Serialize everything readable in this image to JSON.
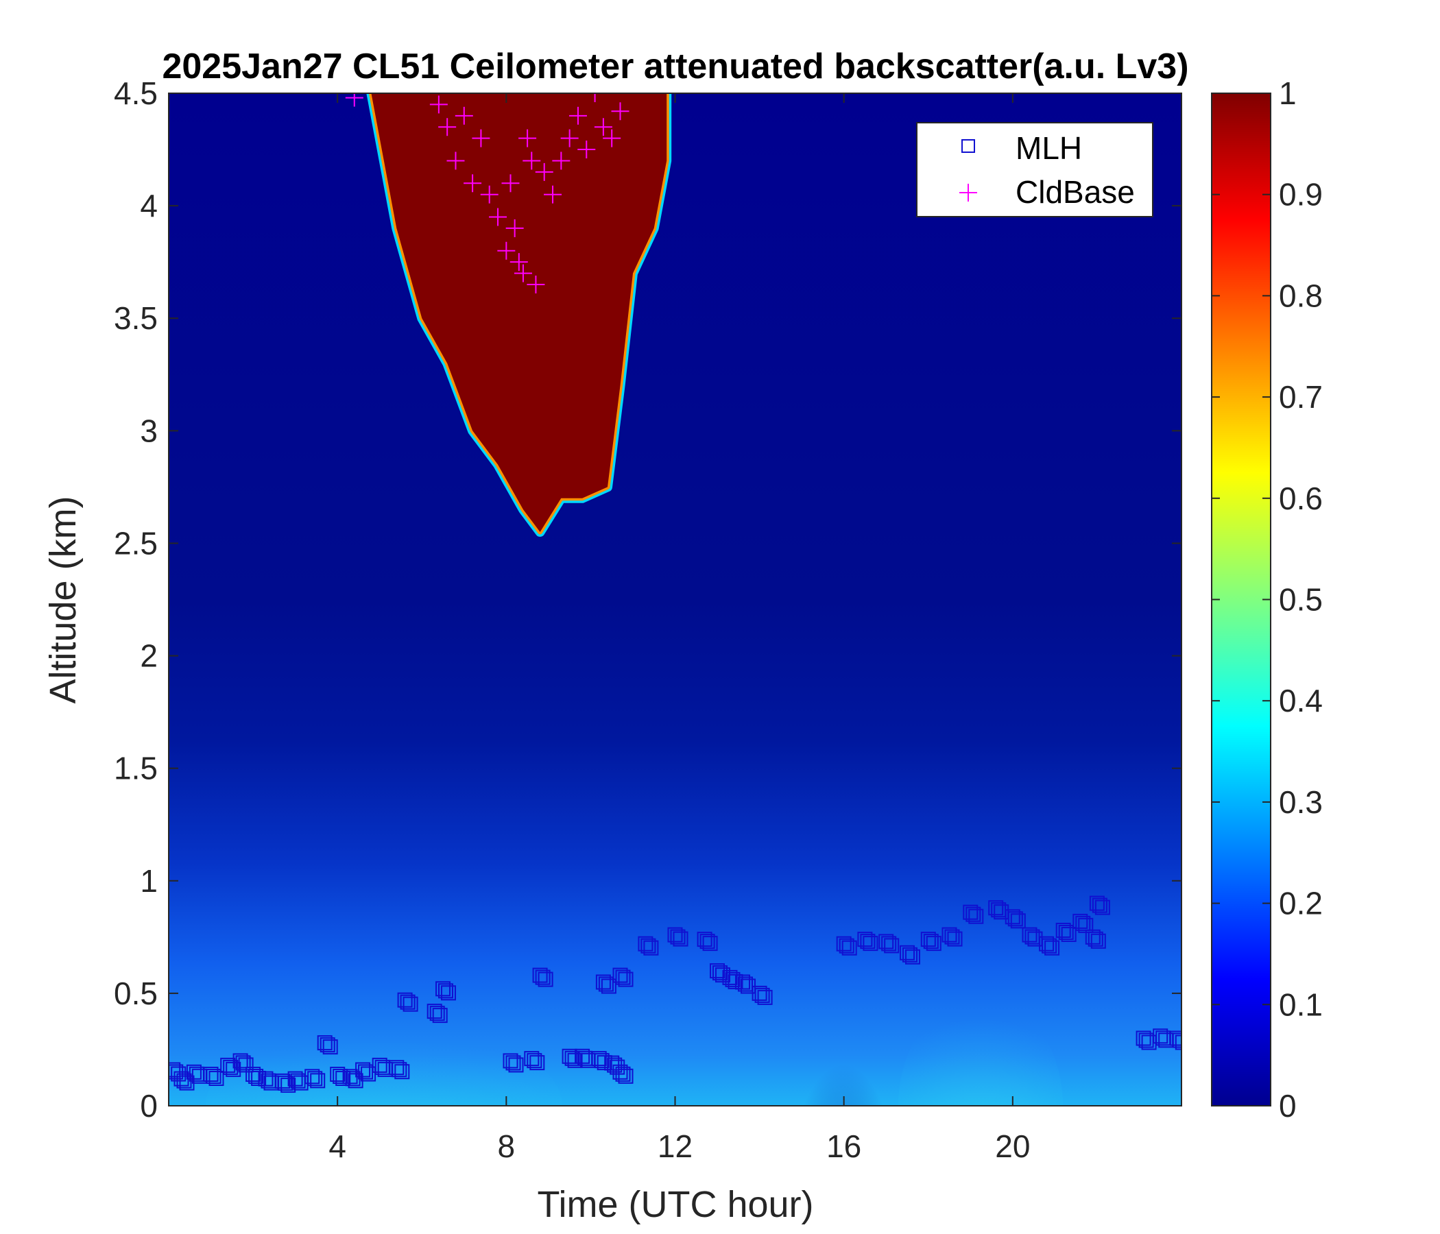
{
  "chart_data": {
    "type": "heatmap",
    "title": "2025Jan27 CL51 Ceilometer attenuated backscatter(a.u. Lv3)",
    "xlabel": "Time (UTC hour)",
    "ylabel": "Altitude (km)",
    "xlim": [
      0,
      24
    ],
    "ylim": [
      0,
      4.5
    ],
    "xticks": [
      4,
      8,
      12,
      16,
      20
    ],
    "xtick_labels": [
      "4",
      "8",
      "12",
      "16",
      "20"
    ],
    "yticks": [
      0,
      0.5,
      1,
      1.5,
      2,
      2.5,
      3,
      3.5,
      4,
      4.5
    ],
    "ytick_labels": [
      "0",
      "0.5",
      "1",
      "1.5",
      "2",
      "2.5",
      "3",
      "3.5",
      "4",
      "4.5"
    ],
    "colorbar": {
      "colormap": "jet",
      "range": [
        0,
        1
      ],
      "ticks": [
        0,
        0.1,
        0.2,
        0.3,
        0.4,
        0.5,
        0.6,
        0.7,
        0.8,
        0.9,
        1
      ],
      "tick_labels": [
        "0",
        "0.1",
        "0.2",
        "0.3",
        "0.4",
        "0.5",
        "0.6",
        "0.7",
        "0.8",
        "0.9",
        "1"
      ],
      "colors": [
        "#00008f",
        "#0000ff",
        "#0080ff",
        "#00ffff",
        "#80ff80",
        "#ffff00",
        "#ff8000",
        "#ff0000",
        "#800000"
      ]
    },
    "legend": {
      "position": "top-right",
      "entries": [
        {
          "label": "MLH",
          "marker": "square",
          "color": "#1010d0"
        },
        {
          "label": "CldBase",
          "marker": "plus",
          "color": "#ff00ff"
        }
      ]
    },
    "cloud_outline": {
      "time": [
        4.8,
        5.4,
        6.0,
        6.6,
        7.2,
        7.8,
        8.4,
        8.8,
        9.3,
        9.8,
        10.4,
        10.7,
        11.0,
        11.5,
        11.8,
        11.8
      ],
      "base_km": [
        4.5,
        3.9,
        3.5,
        3.3,
        3.0,
        2.85,
        2.65,
        2.55,
        2.7,
        2.7,
        2.75,
        3.2,
        3.7,
        3.9,
        4.2,
        4.5
      ]
    },
    "series": [
      {
        "name": "MLH",
        "time": [
          0.1,
          0.3,
          0.6,
          1.0,
          1.4,
          1.7,
          2.0,
          2.3,
          2.7,
          3.0,
          3.4,
          3.7,
          4.0,
          4.3,
          4.6,
          5.0,
          5.4,
          5.6,
          6.3,
          6.5,
          8.1,
          8.6,
          8.8,
          9.5,
          9.8,
          10.2,
          10.5,
          10.7,
          10.3,
          10.7,
          11.3,
          12.0,
          12.7,
          13.0,
          13.3,
          13.6,
          14.0,
          16.0,
          16.5,
          17.0,
          17.5,
          18.0,
          18.5,
          19.0,
          19.6,
          20.0,
          20.4,
          20.8,
          21.2,
          21.6,
          21.9,
          22.0,
          23.1,
          23.5,
          23.9
        ],
        "altitude_km": [
          0.16,
          0.12,
          0.15,
          0.14,
          0.18,
          0.2,
          0.14,
          0.12,
          0.11,
          0.12,
          0.13,
          0.28,
          0.14,
          0.13,
          0.16,
          0.18,
          0.17,
          0.47,
          0.42,
          0.52,
          0.2,
          0.21,
          0.58,
          0.22,
          0.22,
          0.21,
          0.19,
          0.15,
          0.55,
          0.58,
          0.72,
          0.76,
          0.74,
          0.6,
          0.57,
          0.55,
          0.5,
          0.72,
          0.74,
          0.73,
          0.68,
          0.74,
          0.76,
          0.86,
          0.88,
          0.84,
          0.76,
          0.72,
          0.78,
          0.82,
          0.75,
          0.9,
          0.3,
          0.31,
          0.3
        ]
      },
      {
        "name": "CldBase",
        "time": [
          4.4,
          6.4,
          6.6,
          6.8,
          7.0,
          7.2,
          7.4,
          7.6,
          7.8,
          8.0,
          8.1,
          8.2,
          8.3,
          8.4,
          8.5,
          8.6,
          8.7,
          8.9,
          9.1,
          9.3,
          9.5,
          9.7,
          9.9,
          10.1,
          10.3,
          10.5,
          10.7
        ],
        "altitude_km": [
          4.48,
          4.45,
          4.35,
          4.2,
          4.4,
          4.1,
          4.3,
          4.05,
          3.95,
          3.8,
          4.1,
          3.9,
          3.75,
          3.7,
          4.3,
          4.2,
          3.65,
          4.15,
          4.05,
          4.2,
          4.3,
          4.4,
          4.25,
          4.5,
          4.35,
          4.3,
          4.42
        ]
      }
    ]
  }
}
